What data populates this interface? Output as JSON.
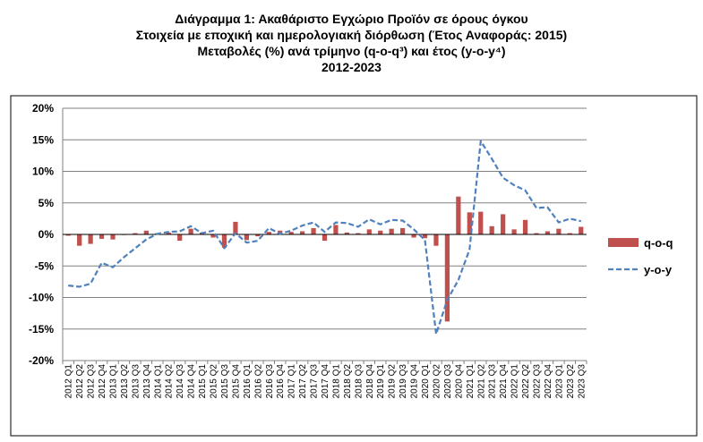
{
  "chart_data": {
    "type": "bar+line",
    "title_lines": [
      "Διάγραμμα 1: Ακαθάριστο Εγχώριο Προϊόν σε όρους όγκου",
      "Στοιχεία με εποχική και ημερολογιακή διόρθωση (Έτος Αναφοράς: 2015)",
      "Μεταβολές (%) ανά τρίμηνο (q-o-q³) και έτος (y-o-y⁴)",
      "2012-2023"
    ],
    "ylim": [
      -20,
      20
    ],
    "yticks": [
      -20,
      -15,
      -10,
      -5,
      0,
      5,
      10,
      15,
      20
    ],
    "ytick_labels": [
      "-20%",
      "-15%",
      "-10%",
      "-5%",
      "0%",
      "5%",
      "10%",
      "15%",
      "20%"
    ],
    "grid": true,
    "legend_position": "right",
    "categories": [
      "2012 Q1",
      "2012 Q2",
      "2012 Q3",
      "2012 Q4",
      "2013 Q1",
      "2013 Q2",
      "2013 Q3",
      "2013 Q4",
      "2014 Q1",
      "2014 Q2",
      "2014 Q3",
      "2014 Q4",
      "2015 Q1",
      "2015 Q2",
      "2015 Q3",
      "2015 Q4",
      "2016 Q1",
      "2016 Q2",
      "2016 Q3",
      "2016 Q4",
      "2017 Q1",
      "2017 Q2",
      "2017 Q3",
      "2017 Q4",
      "2018 Q1",
      "2018 Q2",
      "2018 Q3",
      "2018 Q4",
      "2019 Q1",
      "2019 Q2",
      "2019 Q3",
      "2019 Q4",
      "2020 Q1",
      "2020 Q2",
      "2020 Q3",
      "2020 Q4",
      "2021 Q1",
      "2021 Q2",
      "2021 Q3",
      "2021 Q4",
      "2022 Q1",
      "2022 Q2",
      "2022 Q3",
      "2022 Q4",
      "2023 Q1",
      "2023 Q2",
      "2023 Q3"
    ],
    "series": [
      {
        "name": "q-o-q",
        "kind": "bar",
        "color": "#c0504d",
        "values": [
          -0.2,
          -1.8,
          -1.5,
          -0.7,
          -0.8,
          -0.1,
          0.2,
          0.6,
          0.2,
          0.3,
          -1.0,
          0.9,
          0.3,
          -0.5,
          -2.1,
          2.0,
          -0.9,
          -0.3,
          0.4,
          0.6,
          0.4,
          0.5,
          1.0,
          -1.0,
          1.5,
          0.3,
          0.2,
          0.8,
          0.6,
          0.9,
          1.0,
          -0.5,
          -0.6,
          -1.8,
          -13.8,
          6.0,
          3.5,
          3.6,
          1.3,
          3.2,
          0.8,
          2.3,
          0.2,
          0.5,
          0.9,
          0.2,
          1.2
        ]
      },
      {
        "name": "y-o-y",
        "kind": "line",
        "color": "#4f81bd",
        "values": [
          -8.1,
          -8.3,
          -7.8,
          -4.5,
          -5.2,
          -3.6,
          -2.2,
          -0.8,
          0.1,
          0.4,
          0.5,
          1.3,
          0.2,
          0.6,
          -2.2,
          0.2,
          -1.3,
          -1.0,
          1.0,
          0.1,
          0.6,
          1.4,
          1.9,
          0.4,
          1.9,
          1.8,
          1.2,
          2.4,
          1.6,
          2.3,
          2.2,
          0.8,
          -0.9,
          -15.8,
          -10.4,
          -7.2,
          -2.4,
          14.8,
          12.0,
          9.0,
          7.8,
          7.0,
          4.2,
          4.3,
          1.9,
          2.5,
          2.1
        ]
      }
    ]
  }
}
